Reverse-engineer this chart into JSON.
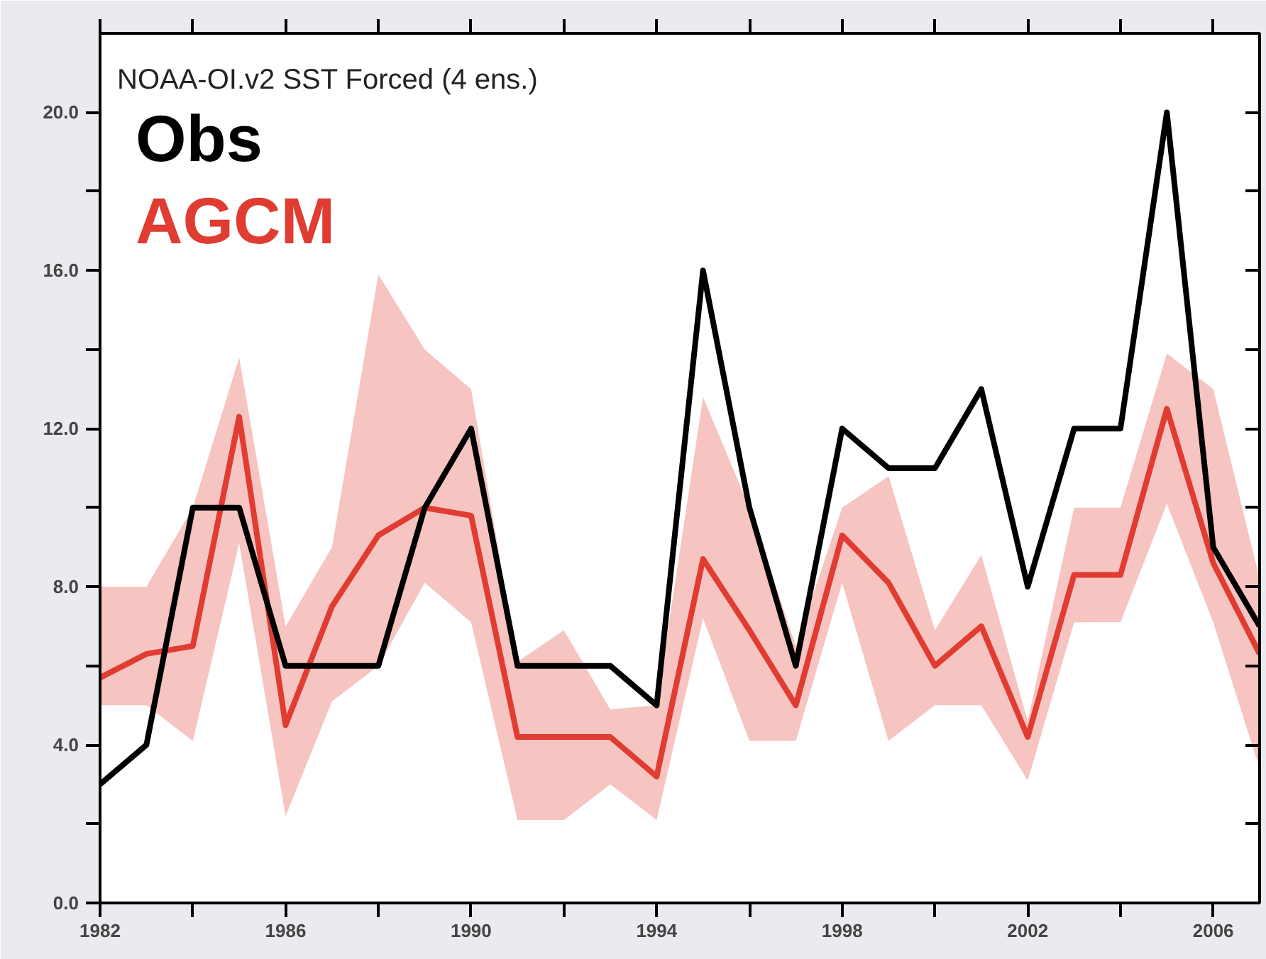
{
  "chart_data": {
    "type": "line",
    "title": "NOAA-OI.v2 SST Forced (4 ens.)",
    "x": [
      1982,
      1983,
      1984,
      1985,
      1986,
      1987,
      1988,
      1989,
      1990,
      1991,
      1992,
      1993,
      1994,
      1995,
      1996,
      1997,
      1998,
      1999,
      2000,
      2001,
      2002,
      2003,
      2004,
      2005,
      2006,
      2007
    ],
    "series": [
      {
        "name": "Obs",
        "color": "#000000",
        "values": [
          3,
          4,
          10,
          10,
          6,
          6,
          6,
          10,
          12,
          6,
          6,
          6,
          5,
          16,
          10,
          6,
          12,
          11,
          11,
          13,
          8,
          12,
          12,
          20,
          9,
          7
        ]
      },
      {
        "name": "AGCM",
        "color": "#e03c31",
        "values": [
          5.7,
          6.3,
          6.5,
          12.3,
          4.5,
          7.5,
          9.3,
          10.0,
          9.8,
          4.2,
          4.2,
          4.2,
          3.2,
          8.7,
          6.9,
          5.0,
          9.3,
          8.1,
          6.0,
          7.0,
          4.2,
          8.3,
          8.3,
          12.5,
          8.6,
          6.3
        ],
        "lower": [
          5,
          5,
          4.1,
          9.1,
          2.2,
          5.1,
          6.0,
          8.1,
          7.1,
          2.1,
          2.1,
          3.0,
          2.1,
          7.2,
          4.1,
          4.1,
          8.1,
          4.1,
          5.0,
          5.0,
          3.1,
          7.1,
          7.1,
          10.1,
          7.1,
          3.4
        ],
        "upper": [
          8,
          8,
          10,
          13.8,
          7.0,
          9.0,
          15.9,
          14.0,
          13.0,
          6.1,
          6.9,
          4.9,
          5,
          12.8,
          10,
          6.5,
          10,
          10.8,
          6.9,
          8.8,
          4.6,
          10,
          10,
          13.9,
          13.0,
          8.2
        ]
      }
    ],
    "xlim": [
      1982,
      2007
    ],
    "ylim": [
      0,
      22
    ],
    "xticks": [
      1982,
      {
        "value": 1984,
        "label": null
      },
      1986,
      {
        "value": 1988,
        "label": null
      },
      1990,
      {
        "value": 1992,
        "label": null
      },
      1994,
      {
        "value": 1996,
        "label": null
      },
      1998,
      {
        "value": 2000,
        "label": null
      },
      2002,
      {
        "value": 2004,
        "label": null
      },
      2006
    ],
    "yticks": [
      {
        "value": 0,
        "label": "0.0"
      },
      {
        "value": 2,
        "label": null
      },
      {
        "value": 4,
        "label": "4.0"
      },
      {
        "value": 6,
        "label": null
      },
      {
        "value": 8,
        "label": "8.0"
      },
      {
        "value": 10,
        "label": null
      },
      {
        "value": 12,
        "label": "12.0"
      },
      {
        "value": 14,
        "label": null
      },
      {
        "value": 16,
        "label": "16.0"
      },
      {
        "value": 18,
        "label": null
      },
      {
        "value": 20,
        "label": "20.0"
      }
    ],
    "legend": "top left",
    "grid": false,
    "line_style": "solid",
    "marker": "none"
  }
}
